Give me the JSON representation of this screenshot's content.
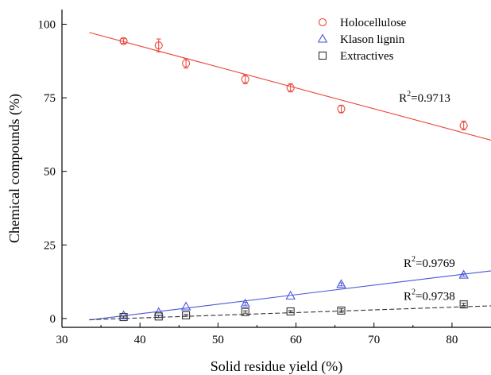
{
  "chart_data": {
    "type": "scatter",
    "xlabel": "Solid residue yield (%)",
    "ylabel": "Chemical compounds (%)",
    "xlim": [
      30,
      85
    ],
    "ylim": [
      -3,
      105
    ],
    "xticks": [
      30,
      40,
      50,
      60,
      70,
      80
    ],
    "yticks": [
      0,
      25,
      50,
      75,
      100
    ],
    "grid": false,
    "legend_position": "top-right",
    "series": [
      {
        "name": "Holocellulose",
        "marker": "circle",
        "color": "#e8463c",
        "x": [
          37.9,
          42.4,
          45.9,
          53.5,
          59.3,
          65.8,
          81.5
        ],
        "y": [
          94.3,
          92.8,
          86.7,
          81.3,
          78.4,
          71.2,
          65.6
        ],
        "error": [
          0.8,
          2.2,
          1.6,
          1.5,
          1.4,
          1.3,
          1.5
        ],
        "fit": {
          "x": [
            33.5,
            85
          ],
          "y": [
            97.2,
            60.6
          ],
          "style": "solid"
        },
        "r2_label": {
          "prefix": "R",
          "sup": "2",
          "suffix": "=0.9713",
          "at_x": 73.2,
          "at_y": 73.7
        }
      },
      {
        "name": "Klason lignin",
        "marker": "triangle",
        "color": "#4a56d8",
        "x": [
          37.9,
          42.4,
          45.9,
          53.5,
          59.3,
          65.8,
          81.5
        ],
        "y": [
          1.0,
          2.1,
          4.0,
          5.0,
          7.7,
          11.6,
          14.8
        ],
        "error": [
          0,
          0,
          0,
          0.5,
          0,
          0.5,
          0.4
        ],
        "fit": {
          "x": [
            33.5,
            85
          ],
          "y": [
            -0.5,
            16.2
          ],
          "style": "solid"
        },
        "r2_label": {
          "prefix": "R",
          "sup": "2",
          "suffix": "=0.9769",
          "at_x": 73.8,
          "at_y": 17.5
        }
      },
      {
        "name": "Extractives",
        "marker": "square",
        "color": "#333333",
        "x": [
          37.9,
          42.4,
          45.9,
          53.5,
          59.3,
          65.8,
          81.5
        ],
        "y": [
          0.5,
          0.7,
          1.1,
          2.2,
          2.4,
          2.7,
          4.8
        ],
        "error": [
          0.3,
          0.4,
          0.3,
          0.4,
          0.3,
          0.6,
          0.4
        ],
        "fit": {
          "x": [
            33.5,
            85
          ],
          "y": [
            -0.4,
            4.3
          ],
          "style": "dashed"
        },
        "r2_label": {
          "prefix": "R",
          "sup": "2",
          "suffix": "=0.9738",
          "at_x": 73.8,
          "at_y": 6.3
        }
      }
    ]
  }
}
